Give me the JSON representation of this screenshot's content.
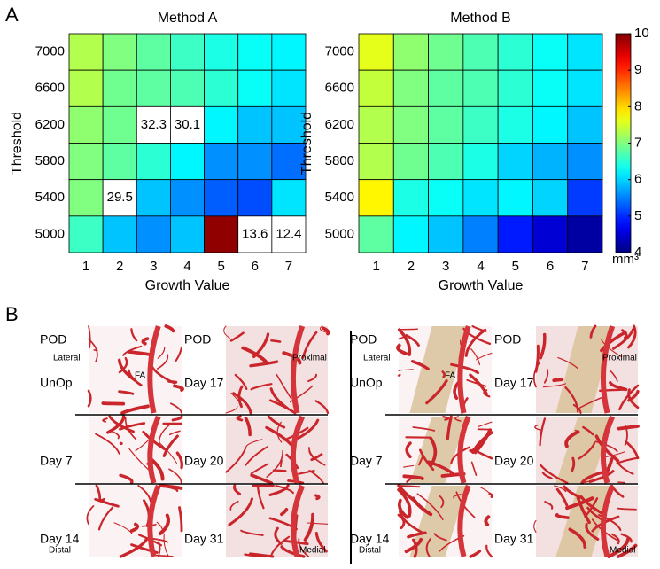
{
  "panel_a": {
    "label": "A"
  },
  "chart_data": [
    {
      "type": "heatmap",
      "title": "Method A",
      "xlabel": "Growth Value",
      "ylabel": "Threshold",
      "x": [
        1,
        2,
        3,
        4,
        5,
        6,
        7
      ],
      "y": [
        7000,
        6600,
        6200,
        5800,
        5400,
        5000
      ],
      "values": [
        [
          7.3,
          7.0,
          6.8,
          6.6,
          6.4,
          6.3,
          6.2
        ],
        [
          7.3,
          6.9,
          6.8,
          6.7,
          6.5,
          6.3,
          6.1
        ],
        [
          7.1,
          6.9,
          32.3,
          30.1,
          6.2,
          5.9,
          5.9
        ],
        [
          7.0,
          6.8,
          6.5,
          6.2,
          5.6,
          5.6,
          5.4
        ],
        [
          7.0,
          29.5,
          5.9,
          5.6,
          5.3,
          5.2,
          6.1
        ],
        [
          6.6,
          5.9,
          5.6,
          5.9,
          9.9,
          13.6,
          12.4
        ]
      ],
      "colormap": "jet",
      "zlim": [
        4,
        10
      ]
    },
    {
      "type": "heatmap",
      "title": "Method B",
      "xlabel": "Growth Value",
      "ylabel": "Threshold",
      "x": [
        1,
        2,
        3,
        4,
        5,
        6,
        7
      ],
      "y": [
        7000,
        6600,
        6200,
        5800,
        5400,
        5000
      ],
      "values": [
        [
          7.6,
          7.1,
          6.9,
          6.7,
          6.5,
          6.3,
          6.1
        ],
        [
          7.4,
          7.0,
          6.8,
          6.7,
          6.5,
          6.3,
          6.1
        ],
        [
          7.3,
          7.0,
          6.8,
          6.6,
          6.4,
          6.2,
          5.9
        ],
        [
          7.3,
          6.9,
          6.7,
          6.4,
          6.0,
          5.8,
          5.6
        ],
        [
          7.8,
          6.4,
          6.3,
          6.1,
          6.2,
          6.0,
          5.1
        ],
        [
          6.8,
          6.2,
          5.9,
          5.5,
          4.9,
          4.5,
          4.2
        ]
      ],
      "colormap": "jet",
      "zlim": [
        4,
        10
      ],
      "colorbar": {
        "ticks": [
          4,
          5,
          6,
          7,
          8,
          9,
          10
        ],
        "label": "mm³"
      }
    }
  ],
  "panel_b": {
    "label": "B",
    "left": {
      "pod": [
        "POD",
        "POD"
      ],
      "lateral": "Lateral",
      "fa": "FA",
      "proximal": "Proximal",
      "distal": "Distal",
      "medial": "Medial",
      "days": [
        "UnOp",
        "Day 17",
        "Day 7",
        "Day 20",
        "Day 14",
        "Day 31"
      ]
    },
    "right": {
      "pod": [
        "POD",
        "POD"
      ],
      "lateral": "Lateral",
      "fa": "FA",
      "proximal": "Proximal",
      "distal": "Distal",
      "medial": "Medial",
      "days": [
        "UnOp",
        "Day 17",
        "Day 7",
        "Day 20",
        "Day 14",
        "Day 31"
      ]
    }
  }
}
